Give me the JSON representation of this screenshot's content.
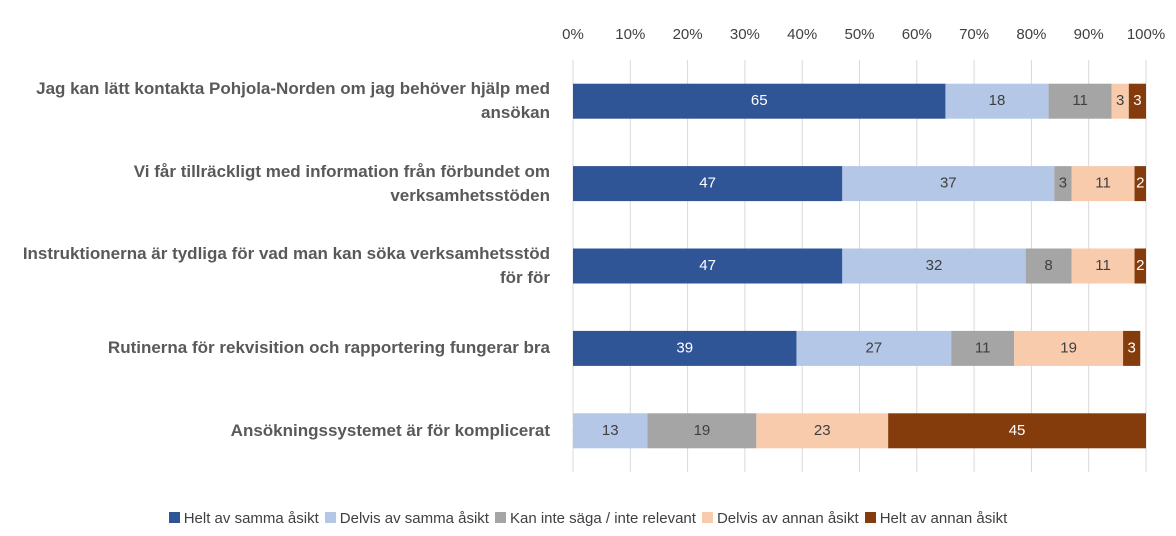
{
  "chart_data": {
    "type": "stacked_barh",
    "categories": [
      "Jag kan lätt kontakta Pohjola-Norden om jag behöver hjälp med ansökan",
      "Vi får tillräckligt med information från förbundet om verksamhetsstöden",
      "Instruktionerna är tydliga för vad man kan söka verksamhetsstöd för för",
      "Rutinerna för rekvisition och rapportering fungerar bra",
      "Ansökningssystemet är för komplicerat"
    ],
    "series": [
      {
        "name": "Helt av samma åsikt",
        "color": "#2f5597",
        "values": [
          65,
          47,
          47,
          39,
          0
        ]
      },
      {
        "name": "Delvis av samma åsikt",
        "color": "#b4c7e7",
        "values": [
          18,
          37,
          32,
          27,
          13
        ]
      },
      {
        "name": "Kan inte säga / inte relevant",
        "color": "#a5a5a5",
        "values": [
          11,
          3,
          8,
          11,
          19
        ]
      },
      {
        "name": "Delvis av annan åsikt",
        "color": "#f8cbad",
        "values": [
          3,
          11,
          11,
          19,
          23
        ]
      },
      {
        "name": "Helt av annan åsikt",
        "color": "#843c0c",
        "values": [
          3,
          2,
          2,
          3,
          45
        ]
      }
    ],
    "xlim": [
      0,
      100
    ],
    "xticks": [
      {
        "value": 0,
        "label": "0%"
      },
      {
        "value": 10,
        "label": "10%"
      },
      {
        "value": 20,
        "label": "20%"
      },
      {
        "value": 30,
        "label": "30%"
      },
      {
        "value": 40,
        "label": "40%"
      },
      {
        "value": 50,
        "label": "50%"
      },
      {
        "value": 60,
        "label": "60%"
      },
      {
        "value": 70,
        "label": "70%"
      },
      {
        "value": 80,
        "label": "80%"
      },
      {
        "value": 90,
        "label": "90%"
      },
      {
        "value": 100,
        "label": "100%"
      }
    ],
    "grid": true,
    "legend": "bottom"
  }
}
